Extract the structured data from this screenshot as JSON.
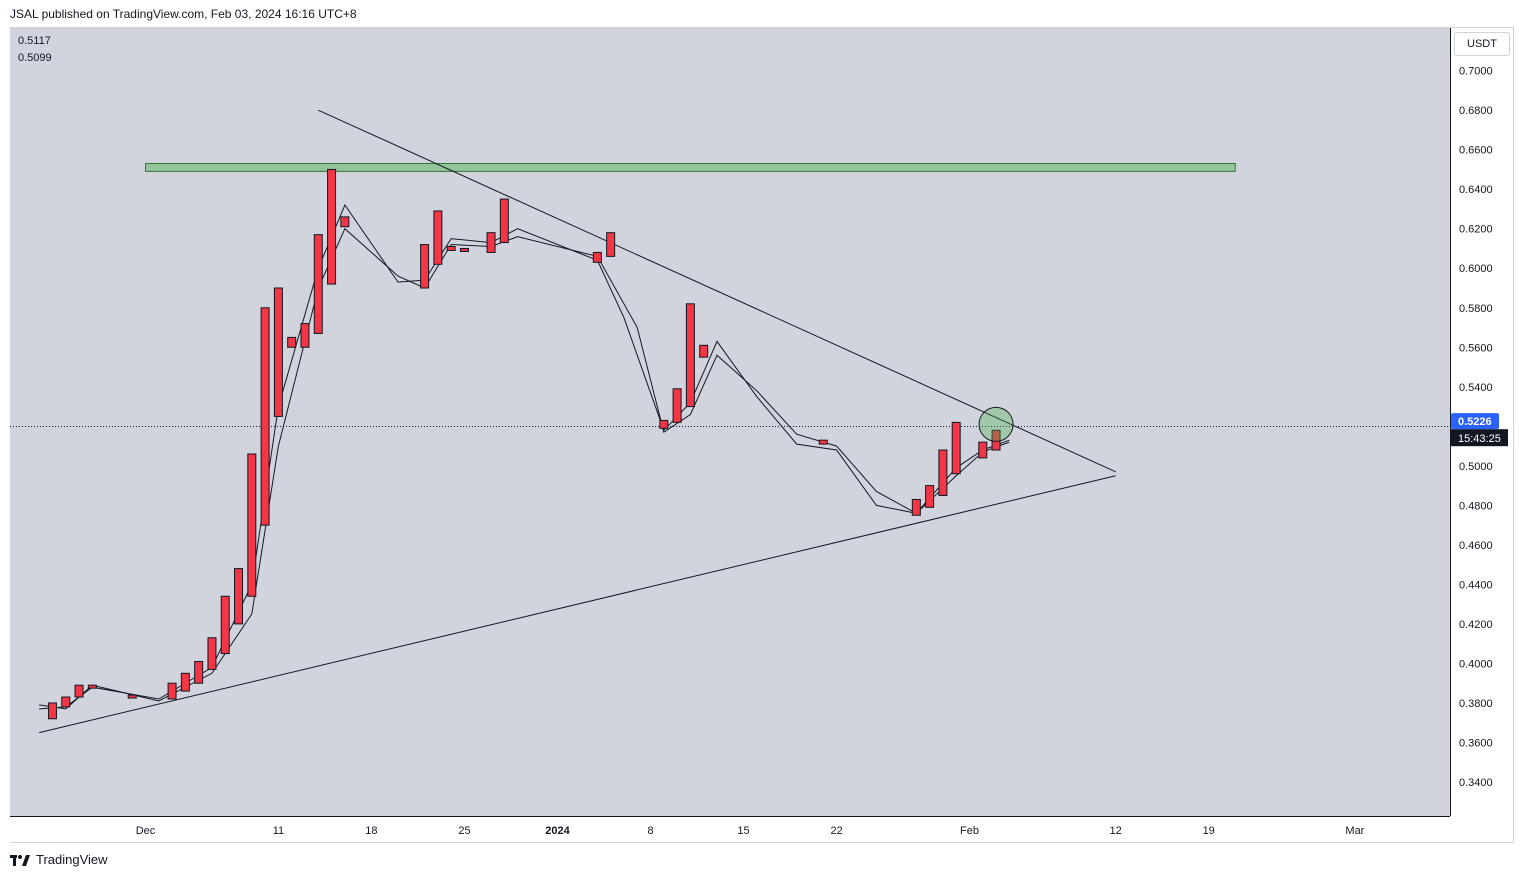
{
  "header": {
    "publish_info": "JSAL published on TradingView.com, Feb 03, 2024 16:16 UTC+8"
  },
  "legend": {
    "value_1": "0.5117",
    "value_2": "0.5099"
  },
  "price_axis": {
    "currency": "USDT",
    "ticks": [
      "0.7000",
      "0.6800",
      "0.6600",
      "0.6400",
      "0.6200",
      "0.6000",
      "0.5800",
      "0.5600",
      "0.5400",
      "0.5000",
      "0.4800",
      "0.4600",
      "0.4400",
      "0.4200",
      "0.4000",
      "0.3800",
      "0.3600",
      "0.3400"
    ],
    "last_price_label": "0.5226",
    "countdown_label": "15:43:25",
    "last_price_color": "#2962ff"
  },
  "time_axis": {
    "ticks": [
      "Dec",
      "11",
      "18",
      "25",
      "2024",
      "8",
      "15",
      "22",
      "Feb",
      "12",
      "19",
      "Mar"
    ]
  },
  "footer": {
    "brand": "TradingView"
  },
  "colors": {
    "candle": "#f23645",
    "resistance_zone": "#4caf50",
    "background": "#d1d4dc"
  },
  "chart_data": {
    "type": "candlestick",
    "symbol_quote": "USDT",
    "ylim": [
      0.33,
      0.71
    ],
    "x_ticks": [
      "Dec",
      "11",
      "18",
      "25",
      "2024",
      "8",
      "15",
      "22",
      "Feb",
      "12",
      "19",
      "Mar"
    ],
    "y_ticks": [
      0.7,
      0.68,
      0.66,
      0.64,
      0.62,
      0.6,
      0.58,
      0.56,
      0.54,
      0.5,
      0.48,
      0.46,
      0.44,
      0.42,
      0.4,
      0.38,
      0.36,
      0.34
    ],
    "candles": [
      {
        "date": "2023-11-24",
        "open": 0.38,
        "close": 0.372
      },
      {
        "date": "2023-11-25",
        "open": 0.378,
        "close": 0.383
      },
      {
        "date": "2023-11-26",
        "open": 0.383,
        "close": 0.389
      },
      {
        "date": "2023-11-27",
        "open": 0.388,
        "close": 0.389
      },
      {
        "date": "2023-11-30",
        "open": 0.384,
        "close": 0.383
      },
      {
        "date": "2023-12-03",
        "open": 0.382,
        "close": 0.39
      },
      {
        "date": "2023-12-04",
        "open": 0.386,
        "close": 0.395
      },
      {
        "date": "2023-12-05",
        "open": 0.39,
        "close": 0.401
      },
      {
        "date": "2023-12-06",
        "open": 0.397,
        "close": 0.413
      },
      {
        "date": "2023-12-07",
        "open": 0.405,
        "close": 0.434
      },
      {
        "date": "2023-12-08",
        "open": 0.42,
        "close": 0.448
      },
      {
        "date": "2023-12-09",
        "open": 0.434,
        "close": 0.506
      },
      {
        "date": "2023-12-10",
        "open": 0.47,
        "close": 0.58
      },
      {
        "date": "2023-12-11",
        "open": 0.525,
        "close": 0.59
      },
      {
        "date": "2023-12-12",
        "open": 0.56,
        "close": 0.565
      },
      {
        "date": "2023-12-13",
        "open": 0.56,
        "close": 0.572
      },
      {
        "date": "2023-12-14",
        "open": 0.567,
        "close": 0.617
      },
      {
        "date": "2023-12-15",
        "open": 0.592,
        "close": 0.65
      },
      {
        "date": "2023-12-16",
        "open": 0.621,
        "close": 0.626
      },
      {
        "date": "2023-12-22",
        "open": 0.59,
        "close": 0.612
      },
      {
        "date": "2023-12-23",
        "open": 0.602,
        "close": 0.629
      },
      {
        "date": "2023-12-24",
        "open": 0.609,
        "close": 0.611
      },
      {
        "date": "2023-12-25",
        "open": 0.61,
        "close": 0.61
      },
      {
        "date": "2023-12-27",
        "open": 0.608,
        "close": 0.618
      },
      {
        "date": "2023-12-28",
        "open": 0.613,
        "close": 0.635
      },
      {
        "date": "2024-01-04",
        "open": 0.603,
        "close": 0.608
      },
      {
        "date": "2024-01-05",
        "open": 0.606,
        "close": 0.618
      },
      {
        "date": "2024-01-09",
        "open": 0.519,
        "close": 0.523
      },
      {
        "date": "2024-01-10",
        "open": 0.522,
        "close": 0.539
      },
      {
        "date": "2024-01-11",
        "open": 0.53,
        "close": 0.582
      },
      {
        "date": "2024-01-12",
        "open": 0.555,
        "close": 0.561
      },
      {
        "date": "2024-01-21",
        "open": 0.511,
        "close": 0.513
      },
      {
        "date": "2024-01-28",
        "open": 0.475,
        "close": 0.483
      },
      {
        "date": "2024-01-29",
        "open": 0.479,
        "close": 0.49
      },
      {
        "date": "2024-01-30",
        "open": 0.485,
        "close": 0.508
      },
      {
        "date": "2024-01-31",
        "open": 0.496,
        "close": 0.522
      },
      {
        "date": "2024-02-02",
        "open": 0.504,
        "close": 0.512
      },
      {
        "date": "2024-02-03",
        "open": 0.508,
        "close": 0.518
      }
    ],
    "moving_averages": [
      {
        "points": [
          [
            "2023-11-23",
            0.377
          ],
          [
            "2023-11-25",
            0.378
          ],
          [
            "2023-11-27",
            0.388
          ],
          [
            "2023-12-02",
            0.382
          ],
          [
            "2023-12-06",
            0.398
          ],
          [
            "2023-12-09",
            0.44
          ],
          [
            "2023-12-11",
            0.53
          ],
          [
            "2023-12-14",
            0.6
          ],
          [
            "2023-12-16",
            0.632
          ],
          [
            "2023-12-20",
            0.593
          ],
          [
            "2023-12-22",
            0.594
          ],
          [
            "2023-12-24",
            0.615
          ],
          [
            "2023-12-27",
            0.613
          ],
          [
            "2023-12-29",
            0.62
          ],
          [
            "2024-01-04",
            0.604
          ],
          [
            "2024-01-06",
            0.575
          ],
          [
            "2024-01-09",
            0.518
          ],
          [
            "2024-01-11",
            0.532
          ],
          [
            "2024-01-13",
            0.563
          ],
          [
            "2024-01-16",
            0.535
          ],
          [
            "2024-01-19",
            0.511
          ],
          [
            "2024-01-22",
            0.508
          ],
          [
            "2024-01-25",
            0.48
          ],
          [
            "2024-01-28",
            0.476
          ],
          [
            "2024-01-31",
            0.499
          ],
          [
            "2024-02-02",
            0.508
          ],
          [
            "2024-02-04",
            0.513
          ]
        ]
      },
      {
        "points": [
          [
            "2023-11-23",
            0.379
          ],
          [
            "2023-11-25",
            0.377
          ],
          [
            "2023-11-27",
            0.389
          ],
          [
            "2023-12-02",
            0.381
          ],
          [
            "2023-12-06",
            0.395
          ],
          [
            "2023-12-09",
            0.425
          ],
          [
            "2023-12-11",
            0.51
          ],
          [
            "2023-12-14",
            0.59
          ],
          [
            "2023-12-16",
            0.62
          ],
          [
            "2023-12-20",
            0.596
          ],
          [
            "2023-12-22",
            0.59
          ],
          [
            "2023-12-24",
            0.612
          ],
          [
            "2023-12-27",
            0.611
          ],
          [
            "2023-12-29",
            0.616
          ],
          [
            "2024-01-04",
            0.606
          ],
          [
            "2024-01-07",
            0.57
          ],
          [
            "2024-01-09",
            0.517
          ],
          [
            "2024-01-11",
            0.526
          ],
          [
            "2024-01-13",
            0.556
          ],
          [
            "2024-01-16",
            0.538
          ],
          [
            "2024-01-19",
            0.516
          ],
          [
            "2024-01-22",
            0.51
          ],
          [
            "2024-01-25",
            0.487
          ],
          [
            "2024-01-28",
            0.476
          ],
          [
            "2024-01-31",
            0.495
          ],
          [
            "2024-02-02",
            0.507
          ],
          [
            "2024-02-04",
            0.512
          ]
        ]
      }
    ],
    "trendlines": [
      {
        "role": "descending resistance",
        "from": [
          "2023-12-14",
          0.68
        ],
        "to": [
          "2024-02-12",
          0.497
        ]
      },
      {
        "role": "ascending support",
        "from": [
          "2023-11-23",
          0.365
        ],
        "to": [
          "2024-02-12",
          0.495
        ]
      }
    ],
    "zones": [
      {
        "role": "resistance zone",
        "from": "2023-12-01",
        "to": "2024-02-21",
        "top": 0.653,
        "bottom": 0.649
      }
    ],
    "markers": [
      {
        "shape": "circle",
        "date": "2024-02-03",
        "price": 0.521
      }
    ],
    "last_price": 0.5226,
    "price_line": 0.5199
  }
}
